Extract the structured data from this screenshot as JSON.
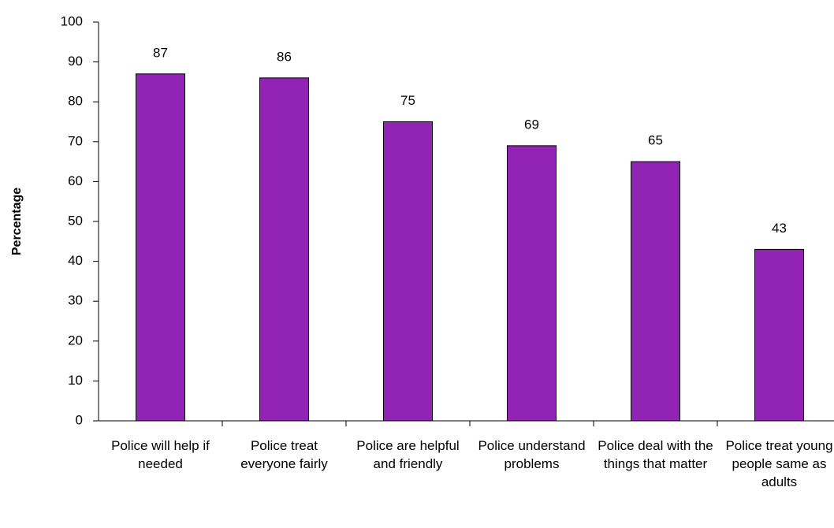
{
  "chart_data": {
    "type": "bar",
    "ylabel": "Percentage",
    "categories": [
      "Police will help if needed",
      "Police treat everyone fairly",
      "Police are helpful and friendly",
      "Police understand problems",
      "Police deal with the things that matter",
      "Police treat young people same as adults"
    ],
    "values": [
      87,
      86,
      75,
      69,
      65,
      43
    ],
    "color": "#9124b4",
    "ylim": [
      0,
      100
    ],
    "yticks": [
      0,
      10,
      20,
      30,
      40,
      50,
      60,
      70,
      80,
      90,
      100
    ],
    "grid": false
  }
}
